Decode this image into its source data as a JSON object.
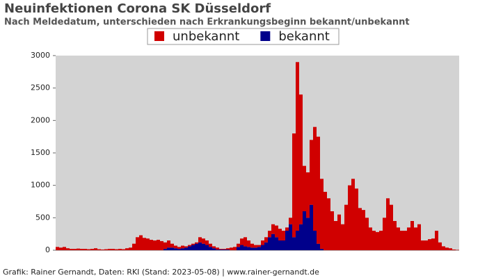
{
  "chart_data": {
    "type": "stacked_bar",
    "title": "Neuinfektionen Corona SK Düsseldorf",
    "subtitle": "Nach Meldedatum, unterschieden nach Erkrankungsbeginn bekannt/unbekannt",
    "footer": "Grafik: Rainer Gernandt, Daten: RKI (Stand: 2023-05-08) | www.rainer-gernandt.de",
    "categories": [
      null,
      null,
      null,
      null,
      null,
      null,
      null,
      null,
      null,
      null,
      null,
      null,
      null,
      null,
      null,
      null,
      null,
      null,
      null,
      null,
      null,
      null,
      null,
      null,
      null,
      null,
      null,
      null,
      null,
      null,
      null,
      null,
      null,
      null,
      null,
      null,
      null,
      null,
      null,
      null,
      null,
      null,
      null,
      null,
      null,
      null,
      null,
      null,
      null,
      null,
      null,
      null,
      null,
      null,
      null,
      null,
      null,
      null,
      null,
      null,
      null,
      null,
      null,
      null,
      null,
      null,
      null,
      null,
      null,
      null,
      null,
      null,
      null,
      null,
      null,
      null,
      null,
      null,
      null,
      null,
      null,
      null,
      null,
      null,
      null,
      null,
      null,
      null,
      null,
      null,
      null,
      null,
      null,
      null,
      null,
      null,
      null,
      null,
      null,
      null,
      null,
      null,
      null,
      null,
      null,
      null,
      null,
      null,
      null,
      null,
      null,
      null,
      null,
      null,
      null,
      null
    ],
    "series": [
      {
        "name": "unbekannt",
        "color": "#d00000",
        "values": [
          50,
          40,
          50,
          30,
          20,
          20,
          25,
          20,
          20,
          15,
          20,
          30,
          15,
          10,
          15,
          20,
          20,
          15,
          20,
          15,
          30,
          40,
          100,
          200,
          230,
          190,
          180,
          160,
          150,
          160,
          140,
          100,
          110,
          60,
          40,
          30,
          40,
          20,
          20,
          20,
          20,
          80,
          80,
          70,
          50,
          30,
          30,
          10,
          10,
          20,
          40,
          50,
          50,
          100,
          140,
          100,
          60,
          40,
          30,
          70,
          80,
          100,
          150,
          180,
          180,
          150,
          50,
          100,
          1600,
          2600,
          2000,
          700,
          700,
          1000,
          1600,
          1650,
          1080,
          900,
          800,
          600,
          450,
          550,
          400,
          700,
          1000,
          1100,
          950,
          650,
          620,
          500,
          350,
          300,
          280,
          300,
          500,
          800,
          700,
          450,
          350,
          300,
          300,
          350,
          450,
          350,
          400,
          150,
          150,
          170,
          180,
          300,
          120,
          60,
          40,
          30,
          10,
          5
        ]
      },
      {
        "name": "bekannt",
        "color": "#00008b",
        "values": [
          0,
          0,
          0,
          0,
          0,
          0,
          0,
          0,
          0,
          0,
          0,
          0,
          0,
          0,
          0,
          0,
          0,
          0,
          0,
          0,
          0,
          0,
          0,
          0,
          0,
          0,
          0,
          0,
          0,
          0,
          0,
          20,
          40,
          40,
          30,
          20,
          30,
          40,
          60,
          80,
          100,
          120,
          100,
          80,
          50,
          30,
          10,
          10,
          10,
          10,
          0,
          0,
          50,
          80,
          60,
          50,
          40,
          40,
          50,
          80,
          120,
          200,
          250,
          200,
          150,
          150,
          300,
          400,
          200,
          300,
          400,
          600,
          500,
          700,
          300,
          100,
          20,
          0,
          0,
          0,
          0,
          0,
          0,
          0,
          0,
          0,
          0,
          0,
          0,
          0,
          0,
          0,
          0,
          0,
          0,
          0,
          0,
          0,
          0,
          0,
          0,
          0,
          0,
          0,
          0,
          0,
          0,
          0,
          0,
          0,
          0,
          0,
          0,
          0,
          0,
          0
        ]
      }
    ],
    "ylim": [
      0,
      3000
    ],
    "yticks": [
      0,
      500,
      1000,
      1500,
      2000,
      2500,
      3000
    ],
    "grid": false,
    "legend": "top"
  }
}
